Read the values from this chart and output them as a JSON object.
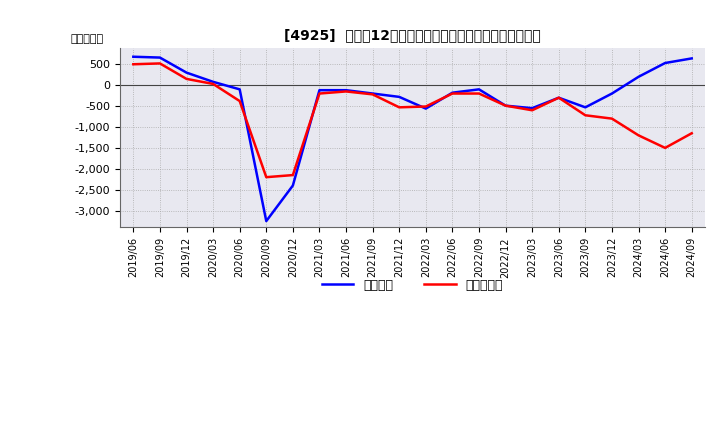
{
  "title": "[4925]  利益の12か月移動合計の対前年同期増減額の推移",
  "ylabel": "（百万円）",
  "legend_labels": [
    "経常利益",
    "当期純利益"
  ],
  "line_colors": [
    "#0000FF",
    "#FF0000"
  ],
  "background_color": "#FFFFFF",
  "grid_color": "#AAAAAA",
  "xlabels": [
    "2019/06",
    "2019/09",
    "2019/12",
    "2020/03",
    "2020/06",
    "2020/09",
    "2020/12",
    "2021/03",
    "2021/06",
    "2021/09",
    "2021/12",
    "2022/03",
    "2022/06",
    "2022/09",
    "2022/12",
    "2023/03",
    "2023/06",
    "2023/09",
    "2023/12",
    "2024/03",
    "2024/06",
    "2024/09"
  ],
  "operating_profit": [
    680,
    660,
    300,
    80,
    -100,
    -3250,
    -2400,
    -120,
    -120,
    -200,
    -280,
    -560,
    -180,
    -100,
    -490,
    -550,
    -300,
    -530,
    -200,
    200,
    530,
    640
  ],
  "net_profit": [
    500,
    520,
    150,
    30,
    -380,
    -2200,
    -2150,
    -200,
    -150,
    -220,
    -530,
    -510,
    -200,
    -200,
    -490,
    -600,
    -300,
    -720,
    -800,
    -1200,
    -1500,
    -1150
  ],
  "ylim": [
    -3400,
    900
  ],
  "yticks": [
    500,
    0,
    -500,
    -1000,
    -1500,
    -2000,
    -2500,
    -3000
  ]
}
